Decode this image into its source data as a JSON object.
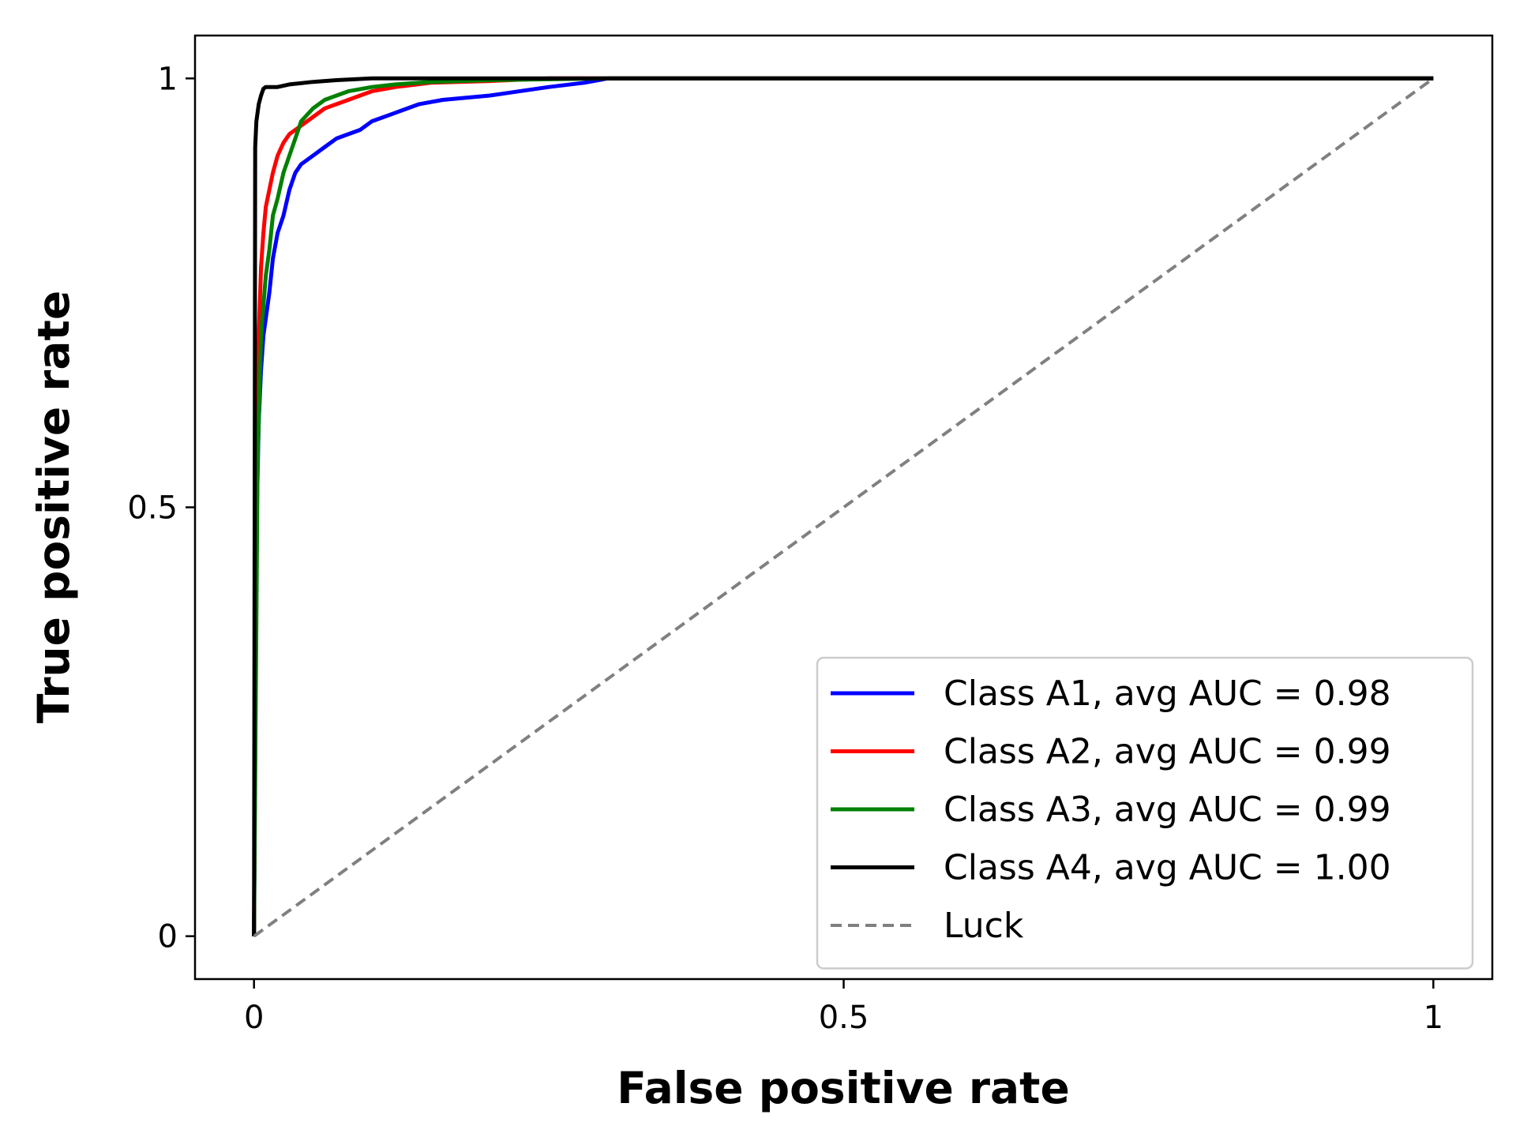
{
  "chart_data": {
    "type": "line",
    "title": "",
    "xlabel": "False positive rate",
    "ylabel": "True positive rate",
    "xlim": [
      -0.05,
      1.05
    ],
    "ylim": [
      -0.05,
      1.05
    ],
    "x_ticks": [
      0,
      0.5,
      1
    ],
    "y_ticks": [
      0,
      0.5,
      1
    ],
    "x_tick_labels": [
      "0",
      "0.5",
      "1"
    ],
    "y_tick_labels": [
      "0",
      "0.5",
      "1"
    ],
    "grid": false,
    "legend_position": "lower-right",
    "series": [
      {
        "name": "Class A1, avg AUC = 0.98",
        "color": "#0000ff",
        "style": "solid",
        "x": [
          0,
          0.002,
          0.004,
          0.006,
          0.008,
          0.01,
          0.013,
          0.016,
          0.02,
          0.025,
          0.03,
          0.035,
          0.04,
          0.05,
          0.06,
          0.07,
          0.08,
          0.09,
          0.1,
          0.12,
          0.14,
          0.16,
          0.2,
          0.25,
          0.28,
          0.3,
          0.4,
          0.6,
          0.8,
          1.0
        ],
        "y": [
          0,
          0.47,
          0.6,
          0.66,
          0.7,
          0.72,
          0.75,
          0.79,
          0.82,
          0.84,
          0.87,
          0.89,
          0.9,
          0.91,
          0.92,
          0.93,
          0.935,
          0.94,
          0.95,
          0.96,
          0.97,
          0.975,
          0.98,
          0.99,
          0.995,
          1.0,
          1.0,
          1.0,
          1.0,
          1.0
        ]
      },
      {
        "name": "Class A2, avg AUC = 0.99",
        "color": "#ff0000",
        "style": "solid",
        "x": [
          0,
          0.002,
          0.004,
          0.006,
          0.008,
          0.01,
          0.013,
          0.016,
          0.02,
          0.025,
          0.03,
          0.04,
          0.05,
          0.06,
          0.07,
          0.08,
          0.09,
          0.1,
          0.12,
          0.15,
          0.2,
          0.25,
          0.3,
          0.4,
          0.6,
          0.8,
          1.0
        ],
        "y": [
          0,
          0.55,
          0.7,
          0.78,
          0.82,
          0.85,
          0.87,
          0.89,
          0.91,
          0.925,
          0.935,
          0.945,
          0.955,
          0.965,
          0.97,
          0.975,
          0.98,
          0.985,
          0.99,
          0.995,
          0.997,
          1.0,
          1.0,
          1.0,
          1.0,
          1.0,
          1.0
        ]
      },
      {
        "name": "Class A3, avg AUC = 0.99",
        "color": "#008000",
        "style": "solid",
        "x": [
          0,
          0.003,
          0.006,
          0.01,
          0.013,
          0.016,
          0.02,
          0.025,
          0.03,
          0.035,
          0.04,
          0.05,
          0.06,
          0.07,
          0.08,
          0.1,
          0.12,
          0.15,
          0.2,
          0.3,
          0.4,
          0.6,
          0.8,
          1.0
        ],
        "y": [
          0,
          0.55,
          0.7,
          0.77,
          0.8,
          0.84,
          0.86,
          0.89,
          0.91,
          0.93,
          0.95,
          0.965,
          0.975,
          0.98,
          0.985,
          0.99,
          0.993,
          0.996,
          0.998,
          1.0,
          1.0,
          1.0,
          1.0,
          1.0
        ]
      },
      {
        "name": "Class A4, avg AUC = 1.00",
        "color": "#000000",
        "style": "solid",
        "x": [
          0,
          0.001,
          0.002,
          0.004,
          0.006,
          0.008,
          0.01,
          0.02,
          0.03,
          0.05,
          0.07,
          0.1,
          0.15,
          0.2,
          0.4,
          0.6,
          0.8,
          1.0
        ],
        "y": [
          0,
          0.92,
          0.95,
          0.97,
          0.98,
          0.988,
          0.99,
          0.99,
          0.993,
          0.996,
          0.998,
          1.0,
          1.0,
          1.0,
          1.0,
          1.0,
          1.0,
          1.0
        ]
      },
      {
        "name": "Luck",
        "color": "#808080",
        "style": "dashed",
        "x": [
          0,
          1
        ],
        "y": [
          0,
          1
        ]
      }
    ]
  }
}
